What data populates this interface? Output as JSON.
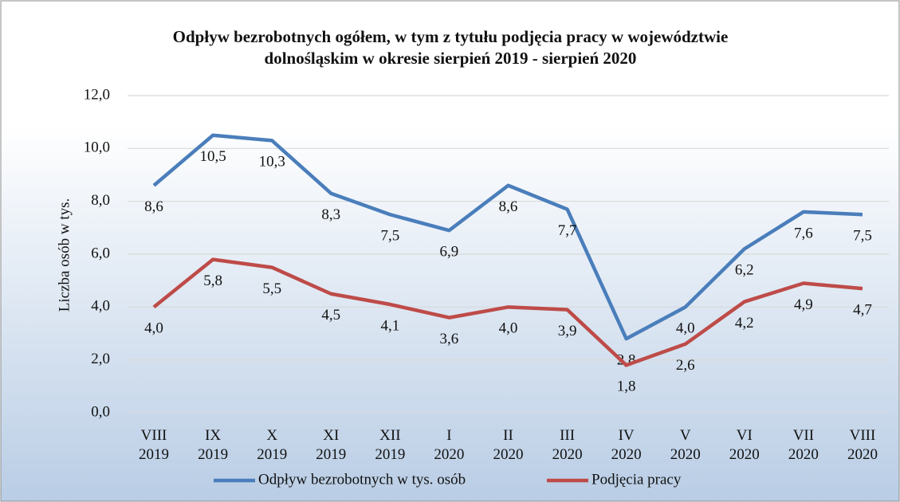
{
  "chart_data": {
    "type": "line",
    "title": [
      "Odpływ bezrobotnych ogółem, w tym z tytułu podjęcia pracy  w województwie",
      "dolnośląskim w okresie sierpień 2019 - sierpień 2020"
    ],
    "y_label": "Liczba osób w tys.",
    "categories": [
      [
        "VIII",
        "2019"
      ],
      [
        "IX",
        "2019"
      ],
      [
        "X",
        "2019"
      ],
      [
        "XI",
        "2019"
      ],
      [
        "XII",
        "2019"
      ],
      [
        "I",
        "2020"
      ],
      [
        "II",
        "2020"
      ],
      [
        "III",
        "2020"
      ],
      [
        "IV",
        "2020"
      ],
      [
        "V",
        "2020"
      ],
      [
        "VI",
        "2020"
      ],
      [
        "VII",
        "2020"
      ],
      [
        "VIII",
        "2020"
      ]
    ],
    "series": [
      {
        "name": "Odpływ bezrobotnych w tys. osób",
        "color": "#4a7ebb",
        "values": [
          8.6,
          10.5,
          10.3,
          8.3,
          7.5,
          6.9,
          8.6,
          7.7,
          2.8,
          4.0,
          6.2,
          7.6,
          7.5
        ],
        "value_labels": [
          "8,6",
          "10,5",
          "10,3",
          "8,3",
          "7,5",
          "6,9",
          "8,6",
          "7,7",
          "2,8",
          "4,0",
          "6,2",
          "7,6",
          "7,5"
        ]
      },
      {
        "name": "Podjęcia pracy",
        "color": "#be4b48",
        "values": [
          4.0,
          5.8,
          5.5,
          4.5,
          4.1,
          3.6,
          4.0,
          3.9,
          1.8,
          2.6,
          4.2,
          4.9,
          4.7
        ],
        "value_labels": [
          "4,0",
          "5,8",
          "5,5",
          "4,5",
          "4,1",
          "3,6",
          "4,0",
          "3,9",
          "1,8",
          "2,6",
          "4,2",
          "4,9",
          "4,7"
        ]
      }
    ],
    "ylim": [
      0,
      12
    ],
    "yticks": [
      {
        "value": 0,
        "label": "0,0"
      },
      {
        "value": 2,
        "label": "2,0"
      },
      {
        "value": 4,
        "label": "4,0"
      },
      {
        "value": 6,
        "label": "6,0"
      },
      {
        "value": 8,
        "label": "8,0"
      },
      {
        "value": 10,
        "label": "10,0"
      },
      {
        "value": 12,
        "label": "12,0"
      }
    ],
    "grid": true,
    "legend": "bottom"
  }
}
